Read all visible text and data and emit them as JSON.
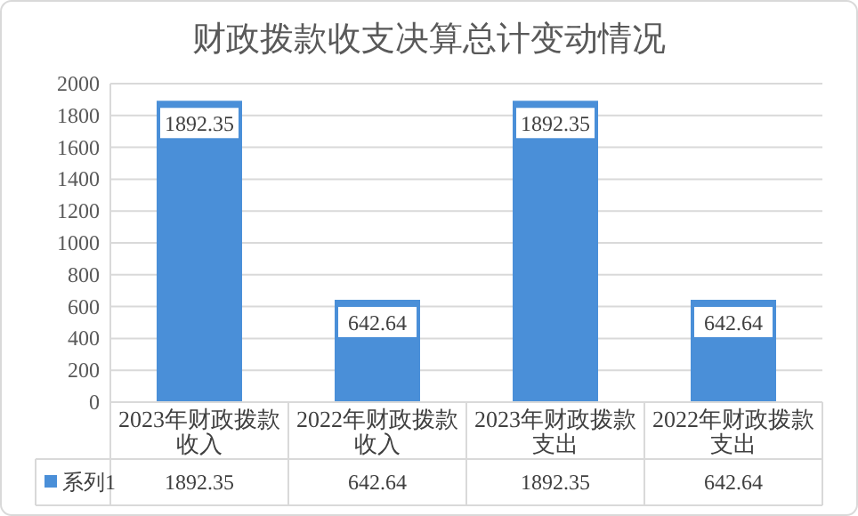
{
  "chart_data": {
    "type": "bar",
    "title": "财政拨款收支决算总计变动情况",
    "categories": [
      "2023年财政拨款收入",
      "2022年财政拨款收入",
      "2023年财政拨款支出",
      "2022年财政拨款支出"
    ],
    "series": [
      {
        "name": "系列1",
        "color": "#4a8fd8",
        "values": [
          1892.35,
          642.64,
          1892.35,
          642.64
        ],
        "value_labels": [
          "1892.35",
          "642.64",
          "1892.35",
          "642.64"
        ]
      }
    ],
    "ylim": [
      0,
      2000
    ],
    "yticks": [
      0,
      200,
      400,
      600,
      800,
      1000,
      1200,
      1400,
      1600,
      1800,
      2000
    ],
    "grid": "y",
    "data_labels": true,
    "legend": "bottom"
  }
}
